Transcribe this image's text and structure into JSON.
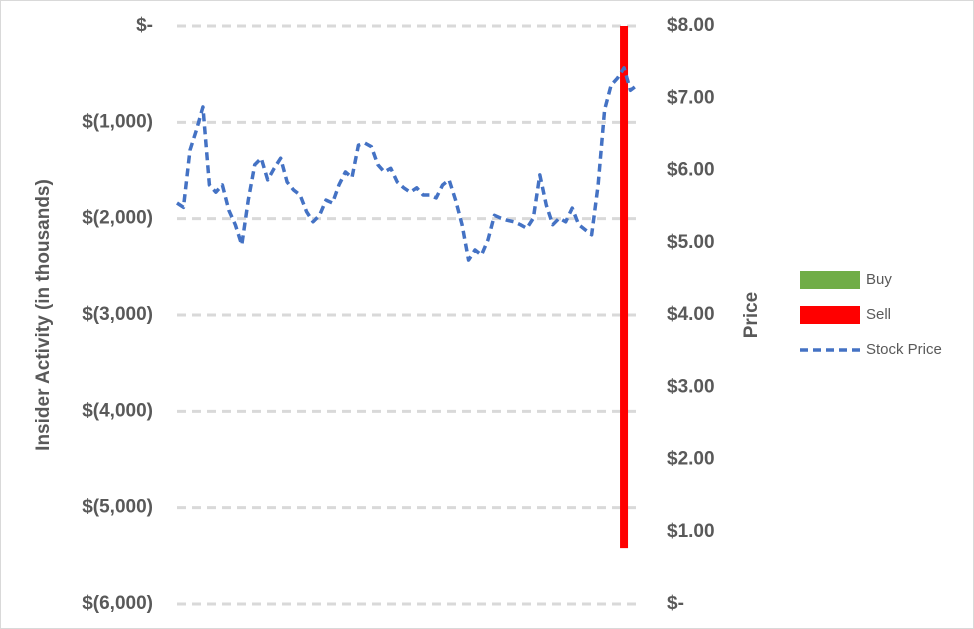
{
  "chart_data": {
    "type": "combo",
    "categories": [
      null,
      null,
      null,
      null,
      null,
      null,
      null,
      null,
      null,
      null,
      null,
      null,
      null,
      null,
      null,
      null,
      null,
      null,
      null,
      null,
      null,
      null,
      null,
      null,
      null,
      null,
      null,
      null,
      null,
      null,
      null,
      null,
      null,
      null,
      null,
      null,
      null,
      null,
      null,
      null,
      null,
      null,
      null,
      null,
      null,
      null,
      null,
      null,
      null,
      null,
      null,
      null,
      null,
      null,
      null,
      null,
      null,
      null,
      null,
      null,
      null,
      null,
      null,
      null,
      null,
      null,
      null,
      null,
      null,
      null,
      null,
      null
    ],
    "ylabel": "Insider Activity (in thousands)",
    "y2label": "Price",
    "ylim": [
      -6000,
      0
    ],
    "yticks": [
      {
        "value": 0,
        "label": "$-"
      },
      {
        "value": -1000,
        "label": "$(1,000)"
      },
      {
        "value": -2000,
        "label": "$(2,000)"
      },
      {
        "value": -3000,
        "label": "$(3,000)"
      },
      {
        "value": -4000,
        "label": "$(4,000)"
      },
      {
        "value": -5000,
        "label": "$(5,000)"
      },
      {
        "value": -6000,
        "label": "$(6,000)"
      }
    ],
    "y2lim": [
      0,
      8
    ],
    "y2ticks": [
      {
        "value": 0,
        "label": "$-"
      },
      {
        "value": 1,
        "label": "$1.00"
      },
      {
        "value": 2,
        "label": "$2.00"
      },
      {
        "value": 3,
        "label": "$3.00"
      },
      {
        "value": 4,
        "label": "$4.00"
      },
      {
        "value": 5,
        "label": "$5.00"
      },
      {
        "value": 6,
        "label": "$6.00"
      },
      {
        "value": 7,
        "label": "$7.00"
      },
      {
        "value": 8,
        "label": "$8.00"
      }
    ],
    "grid": true,
    "legend": "right",
    "series": [
      {
        "name": "Buy",
        "type": "bar",
        "color": "#70ad47",
        "values": [
          null,
          null,
          null,
          null,
          null,
          null,
          null,
          null,
          null,
          null,
          null,
          null,
          null,
          null,
          null,
          null,
          null,
          null,
          null,
          null,
          null,
          null,
          null,
          null,
          null,
          null,
          null,
          null,
          null,
          null,
          null,
          null,
          null,
          null,
          null,
          null,
          null,
          null,
          null,
          null,
          null,
          null,
          null,
          null,
          null,
          null,
          null,
          null,
          null,
          null,
          null,
          null,
          null,
          null,
          null,
          null,
          null,
          null,
          null,
          null,
          null,
          null,
          null,
          null,
          null,
          null,
          null,
          null,
          null,
          null,
          null,
          null
        ]
      },
      {
        "name": "Sell",
        "type": "bar",
        "color": "#ff0000",
        "values": [
          null,
          null,
          null,
          null,
          null,
          null,
          null,
          null,
          null,
          null,
          null,
          null,
          null,
          null,
          null,
          null,
          null,
          null,
          null,
          null,
          null,
          null,
          null,
          null,
          null,
          null,
          null,
          null,
          null,
          null,
          null,
          null,
          null,
          null,
          null,
          null,
          null,
          null,
          null,
          null,
          null,
          null,
          null,
          null,
          null,
          null,
          null,
          null,
          null,
          null,
          null,
          null,
          null,
          null,
          null,
          null,
          null,
          null,
          null,
          null,
          null,
          null,
          null,
          null,
          null,
          null,
          null,
          null,
          null,
          -5420,
          null,
          null
        ]
      },
      {
        "name": "Stock Price",
        "type": "line",
        "axis": "y2",
        "color": "#4472c4",
        "values": [
          5.55,
          5.49,
          6.28,
          6.56,
          6.88,
          5.8,
          5.7,
          5.8,
          5.45,
          5.25,
          4.97,
          5.59,
          6.08,
          6.17,
          5.87,
          6.03,
          6.17,
          5.84,
          5.73,
          5.66,
          5.43,
          5.29,
          5.38,
          5.59,
          5.55,
          5.8,
          5.98,
          5.9,
          6.35,
          6.38,
          6.33,
          6.08,
          5.98,
          6.03,
          5.84,
          5.76,
          5.7,
          5.76,
          5.66,
          5.66,
          5.62,
          5.8,
          5.87,
          5.59,
          5.25,
          4.76,
          4.9,
          4.83,
          5.04,
          5.38,
          5.34,
          5.31,
          5.29,
          5.25,
          5.2,
          5.34,
          5.94,
          5.52,
          5.25,
          5.34,
          5.29,
          5.48,
          5.25,
          5.18,
          5.11,
          5.8,
          6.84,
          7.18,
          7.28,
          7.42,
          7.11,
          7.18
        ]
      }
    ]
  }
}
